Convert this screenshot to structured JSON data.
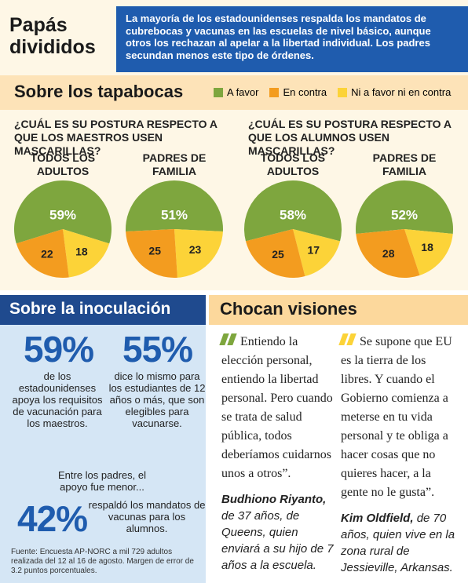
{
  "header": {
    "title": "Papás divididos",
    "intro": "La mayoría de los estadounidenses respalda los mandatos de cubrebocas y vacunas en las escuelas de nivel básico, aunque otros los rechazan al apelar a la libertad individual. Los padres secundan menos este tipo de órdenes."
  },
  "tapabocas": {
    "title": "Sobre los tapabocas",
    "legend": [
      {
        "label": "A favor",
        "color": "#7ea63e"
      },
      {
        "label": "En contra",
        "color": "#f39c1f"
      },
      {
        "label": "Ni a favor ni en contra",
        "color": "#fcd338"
      }
    ],
    "questions": [
      {
        "question": "¿CUÁL ES SU POSTURA RESPECTO A QUE LOS MAESTROS USEN MASCARILLAS?",
        "pies": [
          {
            "label": "TODOS LOS ADULTOS",
            "values": [
              59,
              22,
              18
            ],
            "value_labels": [
              "59%",
              "22",
              "18"
            ]
          },
          {
            "label": "PADRES DE FAMILIA",
            "values": [
              51,
              25,
              23
            ],
            "value_labels": [
              "51%",
              "25",
              "23"
            ]
          }
        ]
      },
      {
        "question": "¿CUÁL ES SU POSTURA RESPECTO A QUE LOS ALUMNOS USEN MASCARILLAS?",
        "pies": [
          {
            "label": "TODOS LOS ADULTOS",
            "values": [
              58,
              25,
              17
            ],
            "value_labels": [
              "58%",
              "25",
              "17"
            ]
          },
          {
            "label": "PADRES DE FAMILIA",
            "values": [
              52,
              28,
              18
            ],
            "value_labels": [
              "52%",
              "28",
              "18"
            ]
          }
        ]
      }
    ]
  },
  "inoculacion": {
    "title": "Sobre la inoculación",
    "stats": [
      {
        "value": "59%",
        "text": "de los estadounidenses apoya los requisitos de vacunación para los maestros."
      },
      {
        "value": "55%",
        "text": "dice lo mismo para los estudiantes de 12 años o más, que son elegibles para vacunarse."
      }
    ],
    "note": "Entre los padres, el apoyo fue menor...",
    "parents": {
      "value": "42%",
      "text": "respaldó los mandatos de vacunas para los alumnos."
    },
    "source": "Fuente: Encuesta AP-NORC a mil 729 adultos realizada del 12 al 16 de agosto. Margen de error de 3.2 puntos porcentuales."
  },
  "visiones": {
    "title": "Chocan visiones",
    "quotes": [
      {
        "text": "Entiendo la elección personal, entiendo la libertad personal. Pero cuando se trata de salud pública, todos deberíamos cuidarnos unos a otros”.",
        "author": "Budhiono Riyanto,",
        "detail": "de 37 años, de Queens, quien enviará a su hijo de 7 años a la escuela."
      },
      {
        "text": "Se supone que EU es la tierra de los libres. Y cuando el Gobierno comienza a meterse en tu vida personal y te obliga a hacer cosas que no quieres hacer, a la gente no le gusta”.",
        "author": "Kim Oldfield,",
        "detail": "de 70 años, quien vive en la zona rural de Jessieville, Arkansas."
      }
    ]
  }
}
